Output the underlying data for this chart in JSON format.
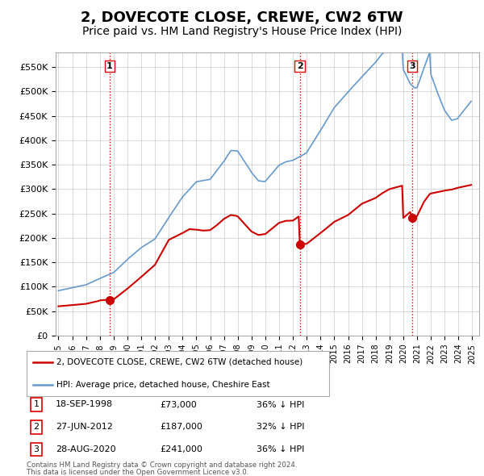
{
  "title": "2, DOVECOTE CLOSE, CREWE, CW2 6TW",
  "subtitle": "Price paid vs. HM Land Registry's House Price Index (HPI)",
  "title_fontsize": 13,
  "subtitle_fontsize": 10,
  "ylim": [
    0,
    580000
  ],
  "yticks": [
    0,
    50000,
    100000,
    150000,
    200000,
    250000,
    300000,
    350000,
    400000,
    450000,
    500000,
    550000
  ],
  "ytick_labels": [
    "£0",
    "£50K",
    "£100K",
    "£150K",
    "£200K",
    "£250K",
    "£300K",
    "£350K",
    "£400K",
    "£450K",
    "£500K",
    "£550K"
  ],
  "xlabel_years": [
    "1995",
    "1996",
    "1997",
    "1998",
    "1999",
    "2000",
    "2001",
    "2002",
    "2003",
    "2004",
    "2005",
    "2006",
    "2007",
    "2008",
    "2009",
    "2010",
    "2011",
    "2012",
    "2013",
    "2014",
    "2015",
    "2016",
    "2017",
    "2018",
    "2019",
    "2020",
    "2021",
    "2022",
    "2023",
    "2024",
    "2025"
  ],
  "grid_color": "#cccccc",
  "plot_bg": "#ffffff",
  "fig_bg": "#ffffff",
  "red_line_color": "#cc0000",
  "blue_line_color": "#6699cc",
  "sale_marker_color": "#cc0000",
  "sale_marker_size": 7,
  "vline_color": "#dd0000",
  "vline_style": ":",
  "legend_label_red": "2, DOVECOTE CLOSE, CREWE, CW2 6TW (detached house)",
  "legend_label_blue": "HPI: Average price, detached house, Cheshire East",
  "transactions": [
    {
      "label": "1",
      "date": 1998.72,
      "price": 73000,
      "date_str": "18-SEP-1998",
      "price_str": "£73,000",
      "pct_str": "36% ↓ HPI"
    },
    {
      "label": "2",
      "date": 2012.49,
      "price": 187000,
      "date_str": "27-JUN-2012",
      "price_str": "£187,000",
      "pct_str": "32% ↓ HPI"
    },
    {
      "label": "3",
      "date": 2020.66,
      "price": 241000,
      "date_str": "28-AUG-2020",
      "price_str": "£241,000",
      "pct_str": "36% ↓ HPI"
    }
  ],
  "footer1": "Contains HM Land Registry data © Crown copyright and database right 2024.",
  "footer2": "This data is licensed under the Open Government Licence v3.0.",
  "xlim_min": 1994.8,
  "xlim_max": 2025.5
}
